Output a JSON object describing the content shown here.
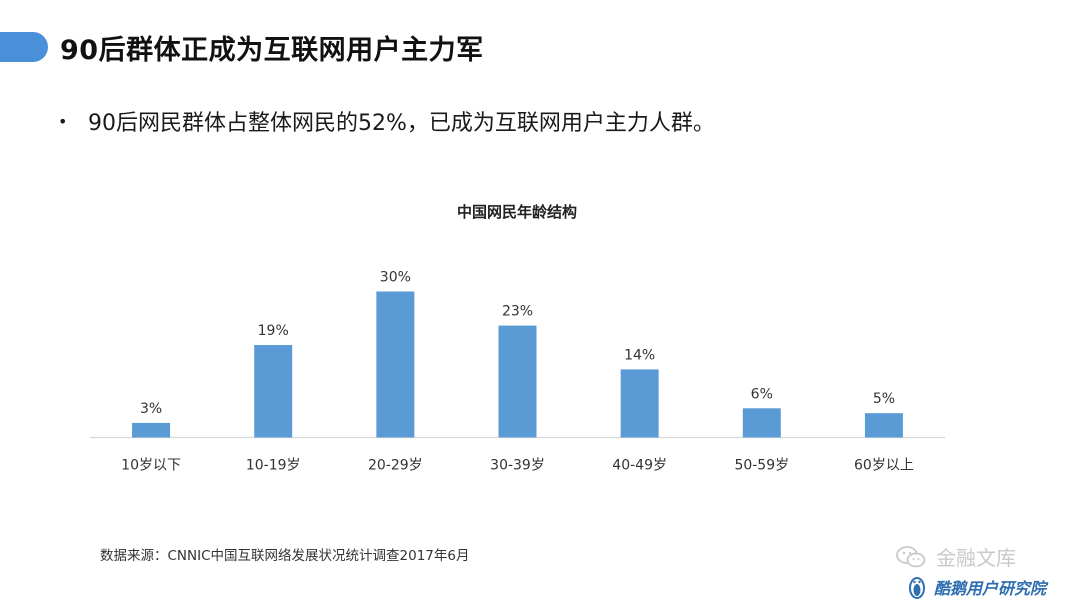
{
  "slide": {
    "title": "90后群体正成为互联网用户主力军",
    "bullet": "90后网民群体占整体网民的52%，已成为互联网用户主力人群。",
    "source": "数据来源：CNNIC中国互联网络发展状况统计调查2017年6月"
  },
  "watermark": {
    "line1": "金融文库",
    "line2": "酷鹅用户研究院",
    "icon1": "wechat-icon",
    "icon2": "penguin-logo-icon"
  },
  "colors": {
    "accent": "#4a90d9",
    "bar": "#5b9bd5",
    "axis": "#d9d9d9"
  },
  "chart_data": {
    "type": "bar",
    "title": "中国网民年龄结构",
    "categories": [
      "10岁以下",
      "10-19岁",
      "20-29岁",
      "30-39岁",
      "40-49岁",
      "50-59岁",
      "60岁以上"
    ],
    "values": [
      3,
      19,
      30,
      23,
      14,
      6,
      5
    ],
    "value_labels": [
      "3%",
      "19%",
      "30%",
      "23%",
      "14%",
      "6%",
      "5%"
    ],
    "unit": "%",
    "ylim": [
      0,
      30
    ],
    "xlabel": "",
    "ylabel": "",
    "grid": false,
    "legend": "none",
    "y_axis_visible": false
  }
}
